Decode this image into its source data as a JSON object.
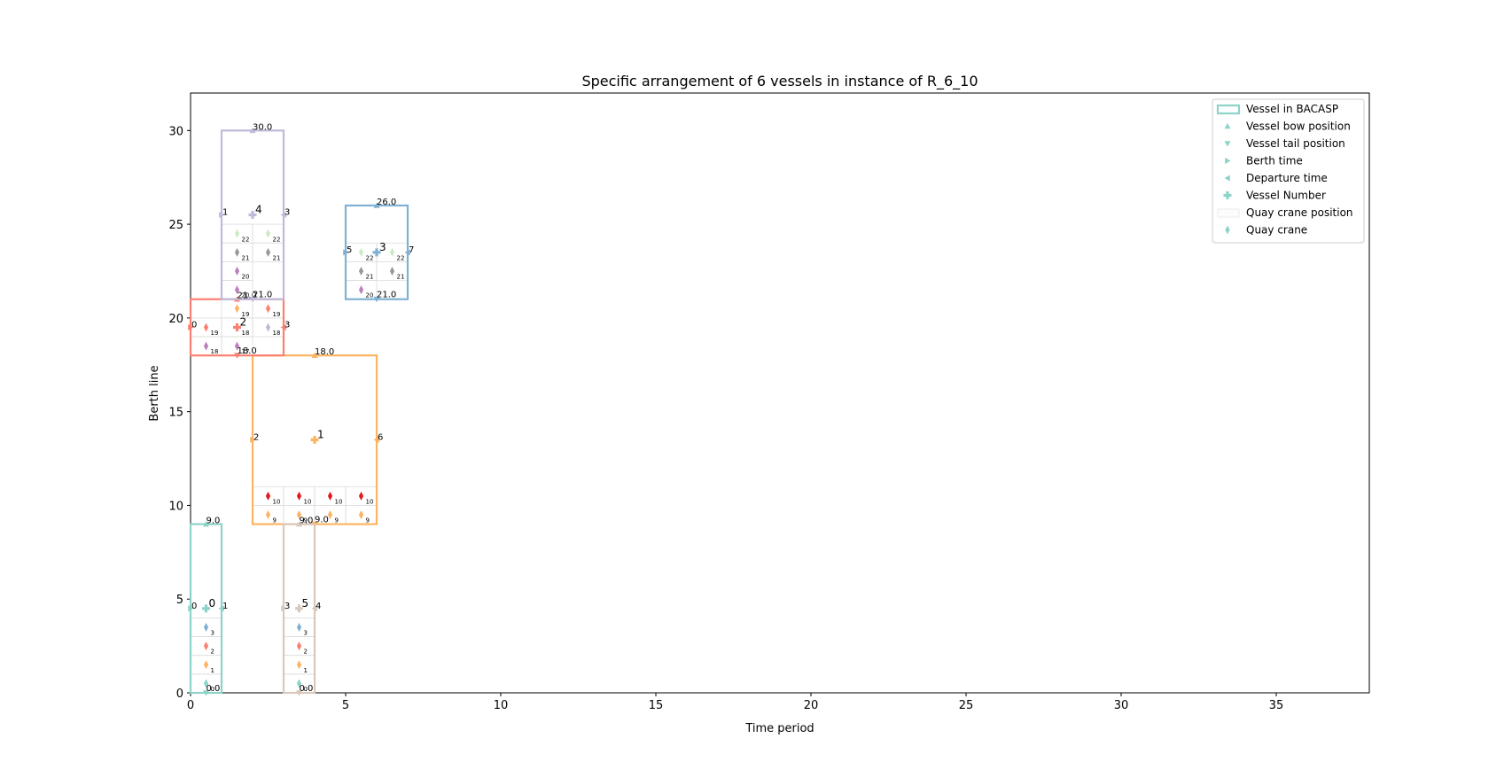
{
  "chart_data": {
    "type": "scatter",
    "title": "Specific arrangement of 6 vessels in instance of R_6_10",
    "xlabel": "Time period",
    "ylabel": "Berth line",
    "xlim": [
      0,
      38
    ],
    "ylim": [
      0,
      32
    ],
    "xticks": [
      0,
      5,
      10,
      15,
      20,
      25,
      30,
      35
    ],
    "yticks": [
      0,
      5,
      10,
      15,
      20,
      25,
      30
    ],
    "grid": false,
    "legend": {
      "position": "top-right",
      "entries": [
        {
          "label": "Vessel in BACASP",
          "marker": "rect"
        },
        {
          "label": "Vessel bow position",
          "marker": "triangle-up"
        },
        {
          "label": "Vessel tail position",
          "marker": "triangle-down"
        },
        {
          "label": "Berth time",
          "marker": "triangle-right"
        },
        {
          "label": "Departure time",
          "marker": "triangle-left"
        },
        {
          "label": "Vessel Number",
          "marker": "plus"
        },
        {
          "label": "Quay crane position",
          "marker": "cell"
        },
        {
          "label": "Quay crane",
          "marker": "thin-diamond"
        }
      ]
    },
    "vessels": [
      {
        "number": "0",
        "color": "#8dd3c7",
        "berth_time": 0,
        "departure_time": 1,
        "tail": 0,
        "bow": 9,
        "tail_label": "0.0",
        "bow_label": "9.0",
        "berth_label": "0",
        "departure_label": "1",
        "cranes": [
          {
            "x": 0.5,
            "y": 0.5,
            "label": "0",
            "color": "#8dd3c7"
          },
          {
            "x": 0.5,
            "y": 1.5,
            "label": "1",
            "color": "#fdb462"
          },
          {
            "x": 0.5,
            "y": 2.5,
            "label": "2",
            "color": "#fb8072"
          },
          {
            "x": 0.5,
            "y": 3.5,
            "label": "3",
            "color": "#80b1d3"
          }
        ]
      },
      {
        "number": "1",
        "color": "#fdb462",
        "berth_time": 2,
        "departure_time": 6,
        "tail": 9,
        "bow": 18,
        "tail_label": "9.0",
        "bow_label": "18.0",
        "berth_label": "2",
        "departure_label": "6",
        "cranes": [
          {
            "x": 2.5,
            "y": 9.5,
            "label": "9",
            "color": "#fdb462"
          },
          {
            "x": 3.5,
            "y": 9.5,
            "label": "9",
            "color": "#fdb462"
          },
          {
            "x": 4.5,
            "y": 9.5,
            "label": "9",
            "color": "#fdb462"
          },
          {
            "x": 5.5,
            "y": 9.5,
            "label": "9",
            "color": "#fdb462"
          },
          {
            "x": 2.5,
            "y": 10.5,
            "label": "10",
            "color": "#e31a1c"
          },
          {
            "x": 3.5,
            "y": 10.5,
            "label": "10",
            "color": "#e31a1c"
          },
          {
            "x": 4.5,
            "y": 10.5,
            "label": "10",
            "color": "#e31a1c"
          },
          {
            "x": 5.5,
            "y": 10.5,
            "label": "10",
            "color": "#e31a1c"
          }
        ]
      },
      {
        "number": "2",
        "color": "#fb8072",
        "berth_time": 0,
        "departure_time": 3,
        "tail": 18,
        "bow": 21,
        "tail_label": "18.0",
        "bow_label": "21.0",
        "berth_label": "0",
        "departure_label": "3",
        "cranes": [
          {
            "x": 0.5,
            "y": 18.5,
            "label": "18",
            "color": "#bc80bd"
          },
          {
            "x": 1.5,
            "y": 18.5,
            "label": "17",
            "color": "#bc80bd"
          },
          {
            "x": 0.5,
            "y": 19.5,
            "label": "19",
            "color": "#fb8072"
          },
          {
            "x": 1.5,
            "y": 19.5,
            "label": "18",
            "color": "#bebada"
          },
          {
            "x": 2.5,
            "y": 19.5,
            "label": "18",
            "color": "#bebada"
          },
          {
            "x": 1.5,
            "y": 20.5,
            "label": "19",
            "color": "#fdb462"
          },
          {
            "x": 2.5,
            "y": 20.5,
            "label": "19",
            "color": "#fb8072"
          }
        ]
      },
      {
        "number": "3",
        "color": "#80b1d3",
        "berth_time": 5,
        "departure_time": 7,
        "tail": 21,
        "bow": 26,
        "tail_label": "21.0",
        "bow_label": "26.0",
        "berth_label": "5",
        "departure_label": "7",
        "cranes": [
          {
            "x": 5.5,
            "y": 21.5,
            "label": "20",
            "color": "#bc80bd"
          },
          {
            "x": 5.5,
            "y": 22.5,
            "label": "21",
            "color": "#999999"
          },
          {
            "x": 6.5,
            "y": 22.5,
            "label": "21",
            "color": "#999999"
          },
          {
            "x": 5.5,
            "y": 23.5,
            "label": "22",
            "color": "#ccebc5"
          },
          {
            "x": 6.5,
            "y": 23.5,
            "label": "22",
            "color": "#ccebc5"
          }
        ]
      },
      {
        "number": "4",
        "color": "#bebada",
        "berth_time": 1,
        "departure_time": 3,
        "tail": 21,
        "bow": 30,
        "tail_label": "21.0",
        "bow_label": "30.0",
        "berth_label": "1",
        "departure_label": "3",
        "cranes": [
          {
            "x": 1.5,
            "y": 21.5,
            "label": "20",
            "color": "#bc80bd"
          },
          {
            "x": 1.5,
            "y": 22.5,
            "label": "20",
            "color": "#bc80bd"
          },
          {
            "x": 1.5,
            "y": 23.5,
            "label": "21",
            "color": "#999999"
          },
          {
            "x": 2.5,
            "y": 23.5,
            "label": "21",
            "color": "#999999"
          },
          {
            "x": 1.5,
            "y": 24.5,
            "label": "22",
            "color": "#ccebc5"
          },
          {
            "x": 2.5,
            "y": 24.5,
            "label": "22",
            "color": "#ccebc5"
          }
        ]
      },
      {
        "number": "5",
        "color": "#d9c8bc",
        "berth_time": 3,
        "departure_time": 4,
        "tail": 0,
        "bow": 9,
        "tail_label": "0.0",
        "bow_label": "9.0",
        "berth_label": "3",
        "departure_label": "4",
        "cranes": [
          {
            "x": 3.5,
            "y": 0.5,
            "label": "0",
            "color": "#8dd3c7"
          },
          {
            "x": 3.5,
            "y": 1.5,
            "label": "1",
            "color": "#fdb462"
          },
          {
            "x": 3.5,
            "y": 2.5,
            "label": "2",
            "color": "#fb8072"
          },
          {
            "x": 3.5,
            "y": 3.5,
            "label": "3",
            "color": "#80b1d3"
          }
        ]
      }
    ]
  }
}
